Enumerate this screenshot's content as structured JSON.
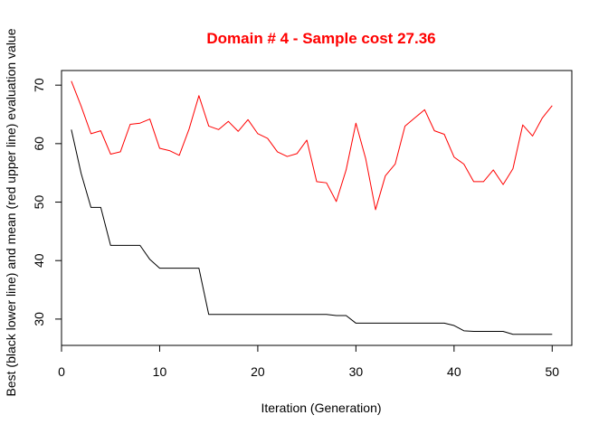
{
  "chart_data": {
    "type": "line",
    "title": "Domain # 4  - Sample cost 27.36",
    "xlabel": "Iteration (Generation)",
    "ylabel": "Best (black lower line) and mean (red upper line) evaluation value",
    "xlim": [
      0,
      52
    ],
    "ylim": [
      25.5,
      72.5
    ],
    "xticks": [
      0,
      10,
      20,
      30,
      40,
      50
    ],
    "yticks": [
      30,
      40,
      50,
      60,
      70
    ],
    "grid": false,
    "legend": "none",
    "x": [
      1,
      2,
      3,
      4,
      5,
      6,
      7,
      8,
      9,
      10,
      11,
      12,
      13,
      14,
      15,
      16,
      17,
      18,
      19,
      20,
      21,
      22,
      23,
      24,
      25,
      26,
      27,
      28,
      29,
      30,
      31,
      32,
      33,
      34,
      35,
      36,
      37,
      38,
      39,
      40,
      41,
      42,
      43,
      44,
      45,
      46,
      47,
      48,
      49,
      50
    ],
    "series": [
      {
        "color": "#000000",
        "values": [
          62.4,
          54.9,
          49.1,
          49.1,
          42.6,
          42.6,
          42.6,
          42.6,
          40.2,
          38.7,
          38.7,
          38.7,
          38.7,
          38.7,
          30.8,
          30.8,
          30.8,
          30.8,
          30.8,
          30.8,
          30.8,
          30.8,
          30.8,
          30.8,
          30.8,
          30.8,
          30.8,
          30.6,
          30.6,
          29.3,
          29.3,
          29.3,
          29.3,
          29.3,
          29.3,
          29.3,
          29.3,
          29.3,
          29.3,
          28.9,
          28.0,
          27.9,
          27.9,
          27.9,
          27.9,
          27.4,
          27.4,
          27.4,
          27.4,
          27.4
        ]
      },
      {
        "color": "#ff0000",
        "values": [
          70.7,
          66.4,
          61.7,
          62.2,
          58.2,
          58.6,
          63.3,
          63.5,
          64.2,
          59.2,
          58.8,
          58.0,
          62.5,
          68.2,
          63.0,
          62.4,
          63.8,
          62.1,
          64.1,
          61.7,
          60.9,
          58.6,
          57.8,
          58.3,
          60.6,
          53.5,
          53.3,
          50.1,
          55.5,
          63.5,
          57.4,
          48.7,
          54.5,
          56.5,
          63.0,
          64.4,
          65.8,
          62.2,
          61.6,
          57.7,
          56.5,
          53.5,
          53.5,
          55.5,
          53.0,
          55.7,
          63.2,
          61.3,
          64.4,
          66.5
        ]
      }
    ]
  }
}
